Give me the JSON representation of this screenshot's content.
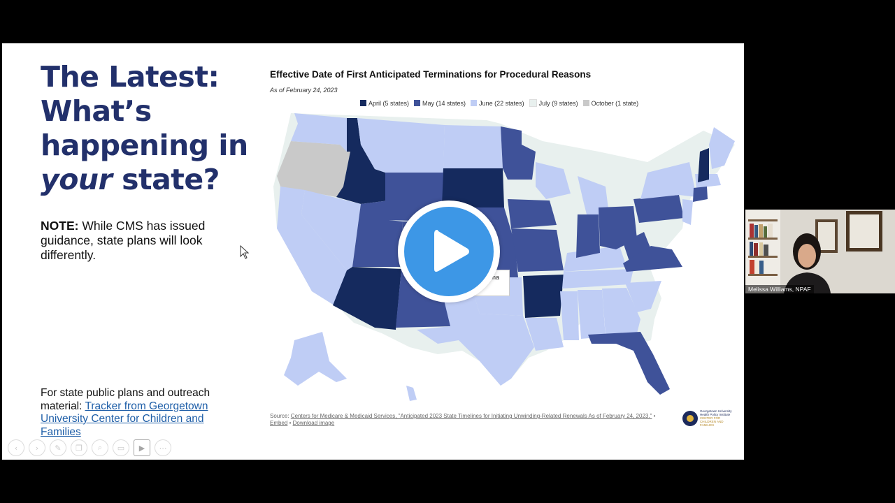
{
  "slide": {
    "headline": {
      "line1": "The Latest:",
      "line2": "What’s",
      "line3": "happening in",
      "line4_italic": "your",
      "line4_rest": " state?"
    },
    "note": {
      "label": "NOTE:",
      "text": " While CMS has issued guidance, state plans will look differently."
    },
    "tracker": {
      "text": "For state public plans and outreach material: ",
      "link": "Tracker from Georgetown University Center for Children and Families"
    }
  },
  "chart_data": {
    "type": "choropleth",
    "title": "Effective Date of First Anticipated Terminations for Procedural Reasons",
    "subtitle": "As of February 24, 2023",
    "legend": [
      {
        "label": "April (5 states)",
        "color": "#152a5e"
      },
      {
        "label": "May (14 states)",
        "color": "#3f5299"
      },
      {
        "label": "June (22 states)",
        "color": "#bfcdf5"
      },
      {
        "label": "July (9 states)",
        "color": "#e8f0ee"
      },
      {
        "label": "October (1 state)",
        "color": "#c9c9c9"
      }
    ],
    "tooltip_fragment": "na",
    "source_prefix": "Source: ",
    "source_link": "Centers for Medicare & Medicaid Services, \"Anticipated 2023 State Timelines for Initiating Unwinding-Related Renewals As of February 24, 2023.\"",
    "embed_label": "Embed",
    "download_label": "Download image",
    "logo_text": "Georgetown University Health Policy Institute",
    "logo_sub": "CENTER FOR CHILDREN AND FAMILIES"
  },
  "video": {
    "participant_name": "Melissa Williams, NPAF"
  },
  "colors": {
    "headline": "#22306b",
    "play_button": "#3d97e6",
    "link": "#1f5fa8"
  },
  "controls": [
    "back-icon",
    "play-icon",
    "pen-icon",
    "copy-icon",
    "zoom-icon",
    "subtitles-icon",
    "video-icon",
    "more-icon"
  ]
}
